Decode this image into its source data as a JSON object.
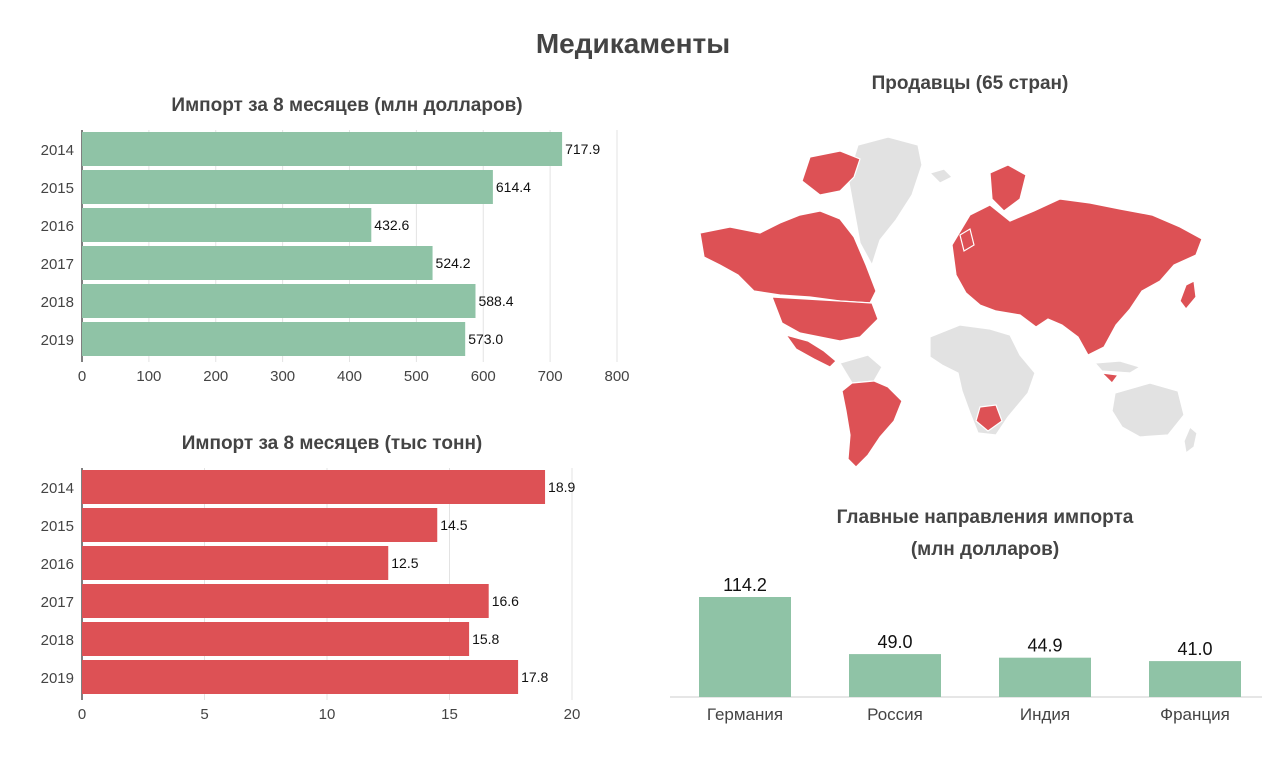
{
  "title": "Медикаменты",
  "colors": {
    "green": "#8fc3a6",
    "red": "#dd5155",
    "map_land": "#e2e2e2"
  },
  "chart_data": [
    {
      "id": "import-value",
      "type": "bar",
      "orientation": "horizontal",
      "title": "Импорт за 8 месяцев (млн долларов)",
      "categories": [
        "2014",
        "2015",
        "2016",
        "2017",
        "2018",
        "2019"
      ],
      "values": [
        717.9,
        614.4,
        432.6,
        524.2,
        588.4,
        573.0
      ],
      "value_labels": [
        "717.9",
        "614.4",
        "432.6",
        "524.2",
        "588.4",
        "573.0"
      ],
      "xlim": [
        0,
        800
      ],
      "ticks": [
        0,
        100,
        200,
        300,
        400,
        500,
        600,
        700,
        800
      ],
      "grid": true,
      "color": "#8fc3a6"
    },
    {
      "id": "import-volume",
      "type": "bar",
      "orientation": "horizontal",
      "title": "Импорт за 8 месяцев (тыс тонн)",
      "categories": [
        "2014",
        "2015",
        "2016",
        "2017",
        "2018",
        "2019"
      ],
      "values": [
        18.9,
        14.5,
        12.5,
        16.6,
        15.8,
        17.8
      ],
      "value_labels": [
        "18.9",
        "14.5",
        "12.5",
        "16.6",
        "15.8",
        "17.8"
      ],
      "xlim": [
        0,
        20
      ],
      "ticks": [
        0,
        5,
        10,
        15,
        20
      ],
      "grid": true,
      "color": "#dd5155"
    },
    {
      "id": "sellers-map",
      "type": "map",
      "title": "Продавцы (65 стран)",
      "highlight_color": "#dd5155",
      "base_color": "#e2e2e2"
    },
    {
      "id": "top-sources",
      "type": "bar",
      "orientation": "vertical",
      "title_line1": "Главные направления импорта",
      "title_line2": "(млн долларов)",
      "categories": [
        "Германия",
        "Россия",
        "Индия",
        "Франция"
      ],
      "values": [
        114.2,
        49.0,
        44.9,
        41.0
      ],
      "value_labels": [
        "114.2",
        "49.0",
        "44.9",
        "41.0"
      ],
      "ylim": [
        0,
        114.2
      ],
      "color": "#8fc3a6"
    }
  ]
}
